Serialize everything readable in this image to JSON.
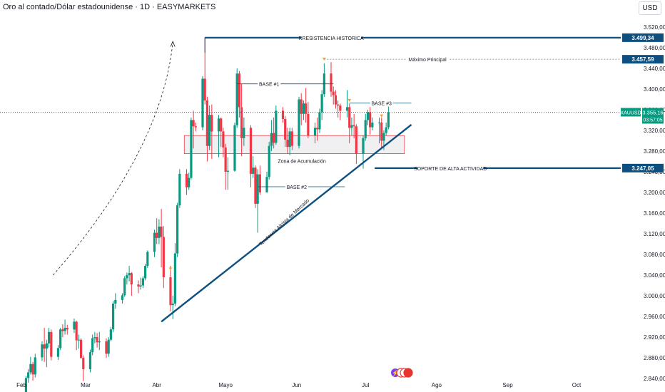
{
  "title": "Oro al contado/Dólar estadounidense · 1D · EASYMARKETS",
  "currency": "USD",
  "chart_data": {
    "type": "candlestick",
    "symbol": "XAUUSD",
    "last_price": "3.355,16",
    "countdown": "03:57:05",
    "xaxis_months": [
      "Feb",
      "Mar",
      "Abr",
      "Mayo",
      "Jun",
      "Jul",
      "Ago",
      "Sep",
      "Oct"
    ],
    "y_ticks": [
      "3.520,00",
      "3.480,00",
      "3.440,00",
      "3.400,00",
      "3.360,00",
      "3.320,00",
      "3.280,00",
      "3.240,00",
      "3.200,00",
      "3.160,00",
      "3.120,00",
      "3.080,00",
      "3.040,00",
      "3.000,00",
      "2.960,00",
      "2.920,00",
      "2.880,00",
      "2.840,00"
    ],
    "ylim": [
      2825,
      3535
    ],
    "colors": {
      "up": "#089981",
      "down": "#f23645",
      "line": "#0d4f7f",
      "price": "#089981"
    },
    "levels": [
      {
        "label": "RRESISTENCIA HISTORICA",
        "price": 3499.34,
        "price_label": "3.499,34"
      },
      {
        "label": "Máximo Principal",
        "price": 3457.59,
        "price_label": "3.457,59"
      },
      {
        "label": "SOPORTE DE ALTA ACTIVIDAD",
        "price": 3247.05,
        "price_label": "3.247,05"
      }
    ],
    "annotations": {
      "base1": "BASE #1",
      "base2": "BASE #2",
      "base3": "BASE #3",
      "zone": "Zona de Acumulación",
      "trend": "Tendencia Alcista de Mercado"
    },
    "zone_range": [
      3275,
      3310
    ],
    "candles": [
      {
        "date": "2025-02-03",
        "open": 2808,
        "high": 2845,
        "low": 2798,
        "close": 2841
      },
      {
        "date": "2025-02-04",
        "open": 2841,
        "high": 2858,
        "low": 2832,
        "close": 2852
      },
      {
        "date": "2025-02-05",
        "open": 2852,
        "high": 2882,
        "low": 2848,
        "close": 2868
      },
      {
        "date": "2025-02-06",
        "open": 2868,
        "high": 2872,
        "low": 2836,
        "close": 2848
      },
      {
        "date": "2025-02-07",
        "open": 2848,
        "high": 2888,
        "low": 2842,
        "close": 2881
      },
      {
        "date": "2025-02-10",
        "open": 2881,
        "high": 2912,
        "low": 2874,
        "close": 2906
      },
      {
        "date": "2025-02-11",
        "open": 2906,
        "high": 2938,
        "low": 2872,
        "close": 2898
      },
      {
        "date": "2025-02-12",
        "open": 2898,
        "high": 2915,
        "low": 2862,
        "close": 2908
      },
      {
        "date": "2025-02-13",
        "open": 2908,
        "high": 2938,
        "low": 2900,
        "close": 2930
      },
      {
        "date": "2025-02-14",
        "open": 2930,
        "high": 2935,
        "low": 2875,
        "close": 2882
      },
      {
        "date": "2025-02-17",
        "open": 2882,
        "high": 2905,
        "low": 2876,
        "close": 2899
      },
      {
        "date": "2025-02-18",
        "open": 2899,
        "high": 2938,
        "low": 2895,
        "close": 2935
      },
      {
        "date": "2025-02-19",
        "open": 2935,
        "high": 2945,
        "low": 2920,
        "close": 2932
      },
      {
        "date": "2025-02-20",
        "open": 2932,
        "high": 2954,
        "low": 2925,
        "close": 2938
      },
      {
        "date": "2025-02-21",
        "open": 2938,
        "high": 2944,
        "low": 2925,
        "close": 2935
      },
      {
        "date": "2025-02-24",
        "open": 2935,
        "high": 2956,
        "low": 2928,
        "close": 2950
      },
      {
        "date": "2025-02-25",
        "open": 2950,
        "high": 2952,
        "low": 2895,
        "close": 2914
      },
      {
        "date": "2025-02-26",
        "open": 2914,
        "high": 2925,
        "low": 2898,
        "close": 2915
      },
      {
        "date": "2025-02-27",
        "open": 2915,
        "high": 2918,
        "low": 2878,
        "close": 2880
      },
      {
        "date": "2025-02-28",
        "open": 2880,
        "high": 2885,
        "low": 2835,
        "close": 2858
      },
      {
        "date": "2025-03-03",
        "open": 2858,
        "high": 2896,
        "low": 2852,
        "close": 2891
      },
      {
        "date": "2025-03-04",
        "open": 2891,
        "high": 2925,
        "low": 2885,
        "close": 2918
      },
      {
        "date": "2025-03-05",
        "open": 2918,
        "high": 2930,
        "low": 2908,
        "close": 2920
      },
      {
        "date": "2025-03-06",
        "open": 2920,
        "high": 2928,
        "low": 2900,
        "close": 2910
      },
      {
        "date": "2025-03-07",
        "open": 2910,
        "high": 2930,
        "low": 2895,
        "close": 2912
      },
      {
        "date": "2025-03-10",
        "open": 2912,
        "high": 2918,
        "low": 2880,
        "close": 2888
      },
      {
        "date": "2025-03-11",
        "open": 2888,
        "high": 2920,
        "low": 2882,
        "close": 2915
      },
      {
        "date": "2025-03-12",
        "open": 2915,
        "high": 2940,
        "low": 2912,
        "close": 2935
      },
      {
        "date": "2025-03-13",
        "open": 2935,
        "high": 2990,
        "low": 2930,
        "close": 2985
      },
      {
        "date": "2025-03-14",
        "open": 2985,
        "high": 3005,
        "low": 2975,
        "close": 2992
      },
      {
        "date": "2025-03-17",
        "open": 2992,
        "high": 3005,
        "low": 2985,
        "close": 3001
      },
      {
        "date": "2025-03-18",
        "open": 3001,
        "high": 3038,
        "low": 2998,
        "close": 3034
      },
      {
        "date": "2025-03-19",
        "open": 3034,
        "high": 3045,
        "low": 3022,
        "close": 3040
      },
      {
        "date": "2025-03-20",
        "open": 3040,
        "high": 3058,
        "low": 3028,
        "close": 3044
      },
      {
        "date": "2025-03-21",
        "open": 3044,
        "high": 3046,
        "low": 3000,
        "close": 3022
      },
      {
        "date": "2025-03-24",
        "open": 3022,
        "high": 3030,
        "low": 3005,
        "close": 3018
      },
      {
        "date": "2025-03-25",
        "open": 3018,
        "high": 3035,
        "low": 3012,
        "close": 3020
      },
      {
        "date": "2025-03-26",
        "open": 3020,
        "high": 3038,
        "low": 3015,
        "close": 3034
      },
      {
        "date": "2025-03-27",
        "open": 3034,
        "high": 3062,
        "low": 3030,
        "close": 3058
      },
      {
        "date": "2025-03-28",
        "open": 3058,
        "high": 3088,
        "low": 3054,
        "close": 3085
      },
      {
        "date": "2025-03-31",
        "open": 3085,
        "high": 3128,
        "low": 3075,
        "close": 3122
      },
      {
        "date": "2025-04-01",
        "open": 3122,
        "high": 3150,
        "low": 3100,
        "close": 3112
      },
      {
        "date": "2025-04-02",
        "open": 3112,
        "high": 3148,
        "low": 3100,
        "close": 3134
      },
      {
        "date": "2025-04-03",
        "open": 3134,
        "high": 3168,
        "low": 3055,
        "close": 3114
      },
      {
        "date": "2025-04-04",
        "open": 3114,
        "high": 3135,
        "low": 3015,
        "close": 3036
      },
      {
        "date": "2025-04-07",
        "open": 3036,
        "high": 3058,
        "low": 2970,
        "close": 2982
      },
      {
        "date": "2025-04-08",
        "open": 2982,
        "high": 3000,
        "low": 2955,
        "close": 2985
      },
      {
        "date": "2025-04-09",
        "open": 2985,
        "high": 3102,
        "low": 2980,
        "close": 3082
      },
      {
        "date": "2025-04-10",
        "open": 3082,
        "high": 3180,
        "low": 3075,
        "close": 3175
      },
      {
        "date": "2025-04-11",
        "open": 3175,
        "high": 3245,
        "low": 3170,
        "close": 3236
      },
      {
        "date": "2025-04-14",
        "open": 3236,
        "high": 3245,
        "low": 3195,
        "close": 3210
      },
      {
        "date": "2025-04-15",
        "open": 3210,
        "high": 3238,
        "low": 3205,
        "close": 3228
      },
      {
        "date": "2025-04-16",
        "open": 3228,
        "high": 3345,
        "low": 3225,
        "close": 3340
      },
      {
        "date": "2025-04-17",
        "open": 3340,
        "high": 3358,
        "low": 3285,
        "close": 3328
      },
      {
        "date": "2025-04-18",
        "open": 3328,
        "high": 3335,
        "low": 3318,
        "close": 3326
      },
      {
        "date": "2025-04-21",
        "open": 3326,
        "high": 3425,
        "low": 3320,
        "close": 3420
      },
      {
        "date": "2025-04-22",
        "open": 3420,
        "high": 3500,
        "low": 3370,
        "close": 3378
      },
      {
        "date": "2025-04-23",
        "open": 3378,
        "high": 3385,
        "low": 3260,
        "close": 3290
      },
      {
        "date": "2025-04-24",
        "open": 3290,
        "high": 3368,
        "low": 3282,
        "close": 3350
      },
      {
        "date": "2025-04-25",
        "open": 3350,
        "high": 3370,
        "low": 3265,
        "close": 3318
      },
      {
        "date": "2025-04-28",
        "open": 3318,
        "high": 3350,
        "low": 3268,
        "close": 3343
      },
      {
        "date": "2025-04-29",
        "open": 3343,
        "high": 3345,
        "low": 3288,
        "close": 3318
      },
      {
        "date": "2025-04-30",
        "open": 3318,
        "high": 3325,
        "low": 3268,
        "close": 3287
      },
      {
        "date": "2025-05-01",
        "open": 3287,
        "high": 3294,
        "low": 3205,
        "close": 3240
      },
      {
        "date": "2025-05-02",
        "open": 3240,
        "high": 3268,
        "low": 3205,
        "close": 3242
      },
      {
        "date": "2025-05-05",
        "open": 3242,
        "high": 3335,
        "low": 3240,
        "close": 3330
      },
      {
        "date": "2025-05-06",
        "open": 3330,
        "high": 3440,
        "low": 3325,
        "close": 3430
      },
      {
        "date": "2025-05-07",
        "open": 3430,
        "high": 3435,
        "low": 3345,
        "close": 3365
      },
      {
        "date": "2025-05-08",
        "open": 3365,
        "high": 3410,
        "low": 3270,
        "close": 3305
      },
      {
        "date": "2025-05-09",
        "open": 3305,
        "high": 3345,
        "low": 3290,
        "close": 3325
      },
      {
        "date": "2025-05-12",
        "open": 3325,
        "high": 3330,
        "low": 3210,
        "close": 3236
      },
      {
        "date": "2025-05-13",
        "open": 3236,
        "high": 3270,
        "low": 3228,
        "close": 3248
      },
      {
        "date": "2025-05-14",
        "open": 3248,
        "high": 3252,
        "low": 3170,
        "close": 3178
      },
      {
        "date": "2025-05-15",
        "open": 3178,
        "high": 3245,
        "low": 3122,
        "close": 3235
      },
      {
        "date": "2025-05-16",
        "open": 3235,
        "high": 3252,
        "low": 3195,
        "close": 3200
      },
      {
        "date": "2025-05-19",
        "open": 3200,
        "high": 3240,
        "low": 3200,
        "close": 3230
      },
      {
        "date": "2025-05-20",
        "open": 3230,
        "high": 3298,
        "low": 3225,
        "close": 3290
      },
      {
        "date": "2025-05-21",
        "open": 3290,
        "high": 3340,
        "low": 3280,
        "close": 3315
      },
      {
        "date": "2025-05-22",
        "open": 3315,
        "high": 3345,
        "low": 3285,
        "close": 3296
      },
      {
        "date": "2025-05-23",
        "open": 3296,
        "high": 3368,
        "low": 3292,
        "close": 3358
      },
      {
        "date": "2025-05-26",
        "open": 3358,
        "high": 3365,
        "low": 3335,
        "close": 3342
      },
      {
        "date": "2025-05-27",
        "open": 3342,
        "high": 3348,
        "low": 3288,
        "close": 3302
      },
      {
        "date": "2025-05-28",
        "open": 3302,
        "high": 3325,
        "low": 3275,
        "close": 3288
      },
      {
        "date": "2025-05-29",
        "open": 3288,
        "high": 3325,
        "low": 3272,
        "close": 3318
      },
      {
        "date": "2025-05-30",
        "open": 3318,
        "high": 3325,
        "low": 3282,
        "close": 3290
      },
      {
        "date": "2025-06-02",
        "open": 3290,
        "high": 3385,
        "low": 3285,
        "close": 3380
      },
      {
        "date": "2025-06-03",
        "open": 3380,
        "high": 3392,
        "low": 3330,
        "close": 3352
      },
      {
        "date": "2025-06-04",
        "open": 3352,
        "high": 3378,
        "low": 3340,
        "close": 3372
      },
      {
        "date": "2025-06-05",
        "open": 3372,
        "high": 3402,
        "low": 3335,
        "close": 3352
      },
      {
        "date": "2025-06-06",
        "open": 3352,
        "high": 3375,
        "low": 3305,
        "close": 3310
      },
      {
        "date": "2025-06-09",
        "open": 3310,
        "high": 3335,
        "low": 3295,
        "close": 3325
      },
      {
        "date": "2025-06-10",
        "open": 3325,
        "high": 3345,
        "low": 3300,
        "close": 3322
      },
      {
        "date": "2025-06-11",
        "open": 3322,
        "high": 3362,
        "low": 3315,
        "close": 3355
      },
      {
        "date": "2025-06-12",
        "open": 3355,
        "high": 3398,
        "low": 3340,
        "close": 3390
      },
      {
        "date": "2025-06-13",
        "open": 3390,
        "high": 3450,
        "low": 3385,
        "close": 3430
      },
      {
        "date": "2025-06-16",
        "open": 3430,
        "high": 3452,
        "low": 3385,
        "close": 3395
      },
      {
        "date": "2025-06-17",
        "open": 3395,
        "high": 3405,
        "low": 3370,
        "close": 3388
      },
      {
        "date": "2025-06-18",
        "open": 3388,
        "high": 3398,
        "low": 3362,
        "close": 3370
      },
      {
        "date": "2025-06-19",
        "open": 3370,
        "high": 3378,
        "low": 3345,
        "close": 3368
      },
      {
        "date": "2025-06-20",
        "open": 3368,
        "high": 3372,
        "low": 3340,
        "close": 3358
      },
      {
        "date": "2025-06-23",
        "open": 3358,
        "high": 3398,
        "low": 3345,
        "close": 3365
      },
      {
        "date": "2025-06-24",
        "open": 3365,
        "high": 3372,
        "low": 3295,
        "close": 3325
      },
      {
        "date": "2025-06-25",
        "open": 3325,
        "high": 3345,
        "low": 3310,
        "close": 3330
      },
      {
        "date": "2025-06-26",
        "open": 3330,
        "high": 3352,
        "low": 3305,
        "close": 3328
      },
      {
        "date": "2025-06-27",
        "open": 3328,
        "high": 3332,
        "low": 3255,
        "close": 3275
      },
      {
        "date": "2025-06-30",
        "open": 3275,
        "high": 3310,
        "low": 3246,
        "close": 3305
      },
      {
        "date": "2025-07-01",
        "open": 3305,
        "high": 3352,
        "low": 3300,
        "close": 3340
      },
      {
        "date": "2025-07-02",
        "open": 3340,
        "high": 3360,
        "low": 3330,
        "close": 3355
      },
      {
        "date": "2025-07-03",
        "open": 3355,
        "high": 3365,
        "low": 3312,
        "close": 3326
      },
      {
        "date": "2025-07-04",
        "open": 3326,
        "high": 3345,
        "low": 3320,
        "close": 3335
      },
      {
        "date": "2025-07-07",
        "open": 3335,
        "high": 3345,
        "low": 3295,
        "close": 3335
      },
      {
        "date": "2025-07-08",
        "open": 3335,
        "high": 3345,
        "low": 3285,
        "close": 3300
      },
      {
        "date": "2025-07-09",
        "open": 3300,
        "high": 3320,
        "low": 3282,
        "close": 3315
      },
      {
        "date": "2025-07-10",
        "open": 3315,
        "high": 3335,
        "low": 3310,
        "close": 3326
      },
      {
        "date": "2025-07-11",
        "open": 3326,
        "high": 3368,
        "low": 3322,
        "close": 3355
      }
    ]
  }
}
